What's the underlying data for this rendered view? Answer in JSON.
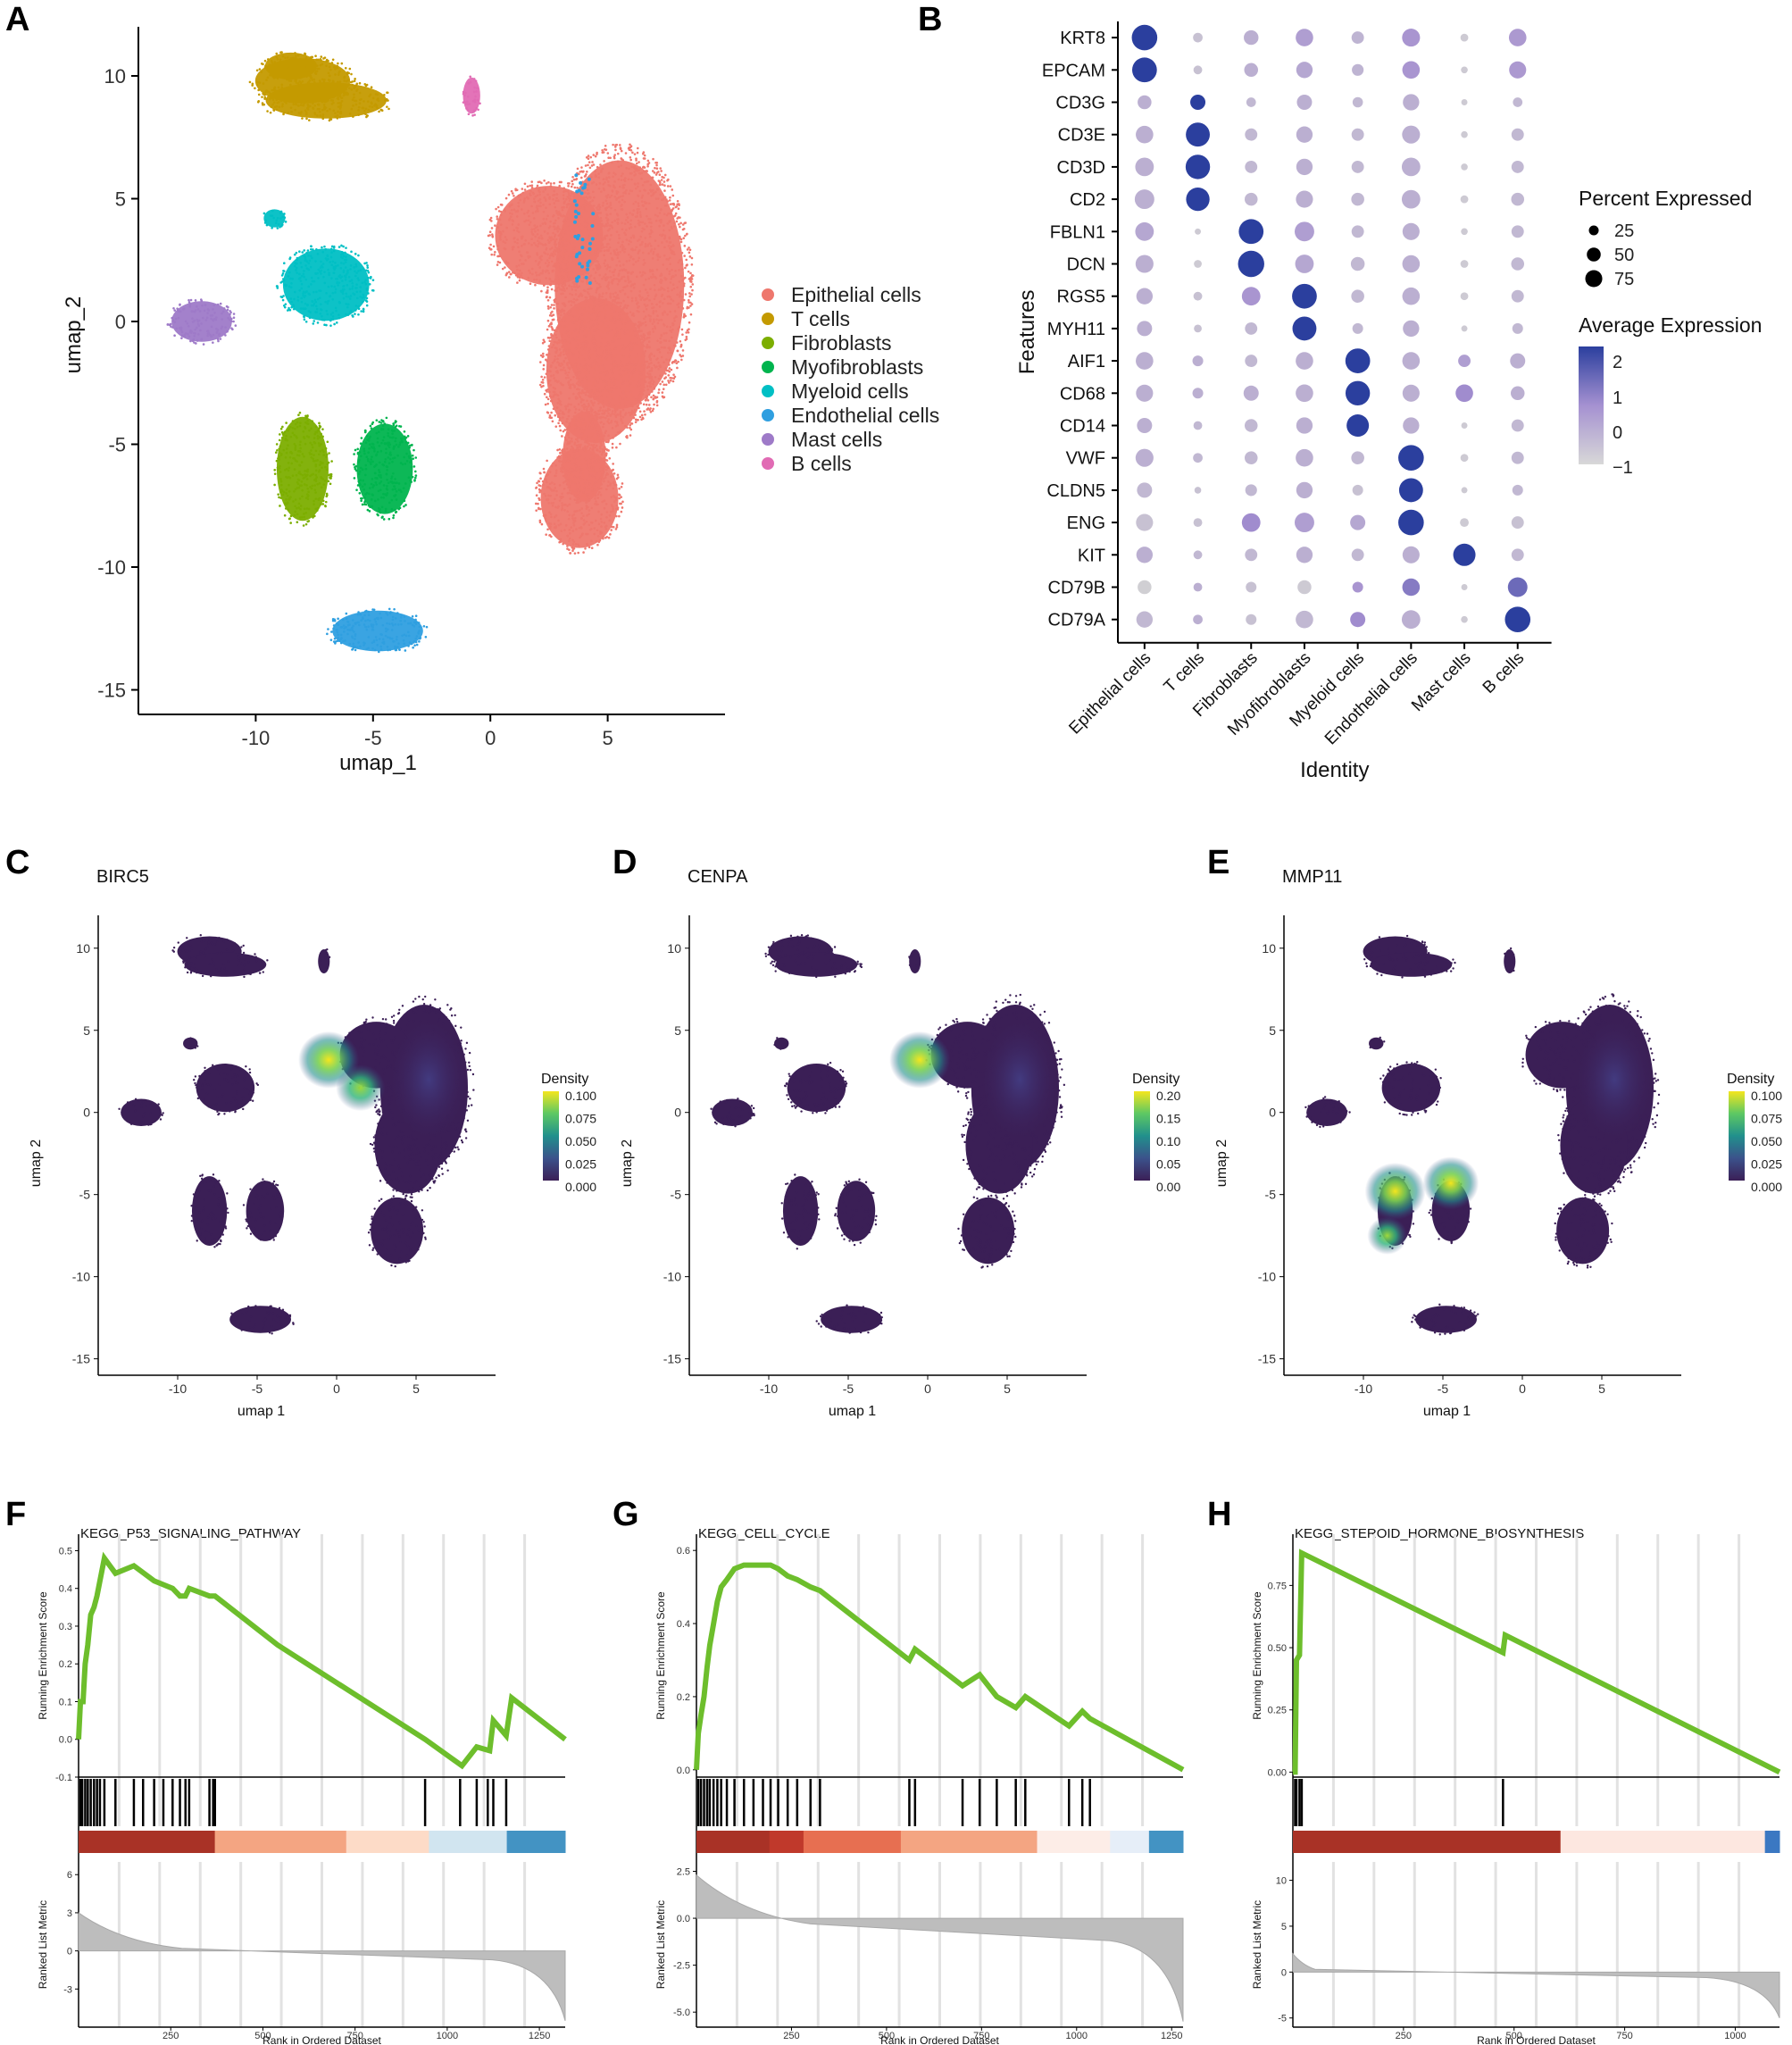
{
  "panels": {
    "A": "A",
    "B": "B",
    "C": "C",
    "D": "D",
    "E": "E",
    "F": "F",
    "G": "G",
    "H": "H"
  },
  "chart_data": [
    {
      "id": "A",
      "type": "scatter",
      "title": "",
      "xlabel": "umap_1",
      "ylabel": "umap_2",
      "xlim": [
        -15,
        10
      ],
      "ylim": [
        -16,
        12
      ],
      "xticks": [
        -10,
        -5,
        0,
        5
      ],
      "yticks": [
        10,
        5,
        0,
        -5,
        -10,
        -15
      ],
      "legend": [
        {
          "label": "Epithelial cells",
          "color": "#EE776D"
        },
        {
          "label": "T cells",
          "color": "#C49A00"
        },
        {
          "label": "Fibroblasts",
          "color": "#7CAE00"
        },
        {
          "label": "Myofibroblasts",
          "color": "#00B44E"
        },
        {
          "label": "Myeloid cells",
          "color": "#00BFC4"
        },
        {
          "label": "Endothelial cells",
          "color": "#2F9FE0"
        },
        {
          "label": "Mast cells",
          "color": "#9E7AC8"
        },
        {
          "label": "B cells",
          "color": "#E16BB4"
        }
      ],
      "clusters": [
        {
          "name": "Epithelial cells",
          "x": [
            0.0,
            9.0
          ],
          "y": [
            -10.0,
            7.5
          ]
        },
        {
          "name": "T cells",
          "x": [
            -11.0,
            -4.5
          ],
          "y": [
            7.5,
            11.0
          ]
        },
        {
          "name": "Fibroblasts",
          "x": [
            -9.5,
            -6.5
          ],
          "y": [
            -8.5,
            -4.0
          ]
        },
        {
          "name": "Myofibroblasts",
          "x": [
            -6.0,
            -3.0
          ],
          "y": [
            -8.0,
            -4.0
          ]
        },
        {
          "name": "Myeloid cells",
          "x": [
            -10.0,
            -5.0
          ],
          "y": [
            0.0,
            4.5
          ]
        },
        {
          "name": "Endothelial cells",
          "x": [
            -7.0,
            -2.5
          ],
          "y": [
            -14.0,
            -11.5
          ]
        },
        {
          "name": "Mast cells",
          "x": [
            -14.0,
            -10.5
          ],
          "y": [
            -1.0,
            1.0
          ]
        },
        {
          "name": "B cells",
          "x": [
            -1.5,
            0.0
          ],
          "y": [
            8.5,
            10.0
          ]
        }
      ]
    },
    {
      "id": "B",
      "type": "dotplot",
      "xlabel": "Identity",
      "ylabel": "Features",
      "features": [
        "KRT8",
        "EPCAM",
        "CD3G",
        "CD3E",
        "CD3D",
        "CD2",
        "FBLN1",
        "DCN",
        "RGS5",
        "MYH11",
        "AIF1",
        "CD68",
        "CD14",
        "VWF",
        "CLDN5",
        "ENG",
        "KIT",
        "CD79B",
        "CD79A"
      ],
      "identities": [
        "Epithelial cells",
        "T cells",
        "Fibroblasts",
        "Myofibroblasts",
        "Myeloid cells",
        "Endothelial cells",
        "Mast cells",
        "B cells"
      ],
      "percent_expressed": [
        [
          85,
          12,
          28,
          40,
          20,
          42,
          8,
          40
        ],
        [
          80,
          10,
          25,
          35,
          18,
          40,
          6,
          38
        ],
        [
          25,
          30,
          12,
          30,
          14,
          35,
          5,
          12
        ],
        [
          40,
          75,
          20,
          35,
          20,
          42,
          6,
          20
        ],
        [
          45,
          78,
          20,
          35,
          20,
          45,
          6,
          20
        ],
        [
          50,
          72,
          22,
          38,
          22,
          45,
          8,
          22
        ],
        [
          45,
          5,
          80,
          50,
          20,
          38,
          6,
          20
        ],
        [
          42,
          8,
          90,
          45,
          25,
          40,
          8,
          22
        ],
        [
          35,
          10,
          45,
          80,
          22,
          40,
          8,
          20
        ],
        [
          30,
          8,
          20,
          75,
          15,
          35,
          5,
          15
        ],
        [
          40,
          15,
          20,
          40,
          80,
          40,
          20,
          30
        ],
        [
          38,
          15,
          30,
          40,
          78,
          38,
          40,
          25
        ],
        [
          30,
          10,
          22,
          35,
          65,
          35,
          5,
          20
        ],
        [
          42,
          12,
          22,
          40,
          22,
          85,
          8,
          20
        ],
        [
          30,
          6,
          18,
          35,
          15,
          75,
          5,
          15
        ],
        [
          38,
          10,
          45,
          50,
          30,
          85,
          10,
          20
        ],
        [
          35,
          10,
          20,
          35,
          20,
          38,
          65,
          20
        ],
        [
          25,
          10,
          15,
          25,
          15,
          40,
          5,
          50
        ],
        [
          35,
          12,
          15,
          40,
          30,
          45,
          6,
          85
        ]
      ],
      "avg_expression": [
        [
          2.4,
          -0.6,
          -0.2,
          0.2,
          -0.3,
          0.4,
          -0.8,
          0.3
        ],
        [
          2.4,
          -0.6,
          -0.2,
          0.0,
          -0.3,
          0.4,
          -0.8,
          0.3
        ],
        [
          -0.2,
          2.4,
          -0.4,
          -0.2,
          -0.4,
          -0.2,
          -0.8,
          -0.4
        ],
        [
          -0.2,
          2.4,
          -0.4,
          -0.2,
          -0.4,
          -0.2,
          -0.8,
          -0.4
        ],
        [
          -0.2,
          2.4,
          -0.4,
          -0.2,
          -0.4,
          -0.2,
          -0.8,
          -0.4
        ],
        [
          -0.2,
          2.4,
          -0.4,
          -0.2,
          -0.4,
          -0.2,
          -0.8,
          -0.4
        ],
        [
          0.0,
          -0.8,
          2.4,
          0.2,
          -0.4,
          -0.2,
          -0.8,
          -0.4
        ],
        [
          -0.2,
          -0.8,
          2.4,
          0.0,
          -0.4,
          -0.2,
          -0.8,
          -0.4
        ],
        [
          -0.2,
          -0.6,
          0.4,
          2.4,
          -0.4,
          -0.2,
          -0.8,
          -0.4
        ],
        [
          -0.2,
          -0.6,
          -0.4,
          2.4,
          -0.4,
          -0.2,
          -0.8,
          -0.4
        ],
        [
          -0.2,
          -0.2,
          -0.4,
          -0.2,
          2.4,
          -0.2,
          0.2,
          -0.2
        ],
        [
          -0.2,
          -0.2,
          -0.2,
          -0.2,
          2.4,
          -0.2,
          0.6,
          -0.2
        ],
        [
          -0.2,
          -0.4,
          -0.4,
          -0.2,
          2.4,
          -0.2,
          -0.8,
          -0.4
        ],
        [
          -0.2,
          -0.4,
          -0.4,
          -0.2,
          -0.4,
          2.4,
          -0.8,
          -0.4
        ],
        [
          -0.4,
          -0.6,
          -0.4,
          -0.2,
          -0.6,
          2.4,
          -0.8,
          -0.4
        ],
        [
          -0.6,
          -0.6,
          0.6,
          0.2,
          0.0,
          2.4,
          -0.8,
          -0.6
        ],
        [
          -0.2,
          -0.4,
          -0.4,
          -0.2,
          -0.4,
          -0.2,
          2.4,
          -0.4
        ],
        [
          -0.9,
          -0.2,
          -0.6,
          -0.8,
          0.4,
          1.0,
          -0.8,
          1.4
        ],
        [
          -0.4,
          -0.2,
          -0.6,
          -0.4,
          0.6,
          -0.2,
          -0.8,
          2.4
        ]
      ],
      "size_legend_title": "Percent Expressed",
      "size_legend": [
        25,
        50,
        75
      ],
      "color_legend_title": "Average Expression",
      "color_legend_ticks": [
        "2",
        "1",
        "0",
        "−1"
      ],
      "color_range": [
        -1,
        2.4
      ],
      "colors": {
        "low": "#D3D3D3",
        "mid": "#A58FD0",
        "high": "#2E3F9E"
      }
    },
    {
      "id": "C",
      "type": "density",
      "title": "BIRC5",
      "xlabel": "umap 1",
      "ylabel": "umap 2",
      "legend_title": "Density",
      "legend_ticks": [
        "0.100",
        "0.075",
        "0.050",
        "0.025",
        "0.000"
      ],
      "hotspots": [
        {
          "x": -0.5,
          "y": 3.2,
          "level": 1.0
        },
        {
          "x": 1.5,
          "y": 1.5,
          "level": 0.75
        }
      ]
    },
    {
      "id": "D",
      "type": "density",
      "title": "CENPA",
      "xlabel": "umap 1",
      "ylabel": "umap 2",
      "legend_title": "Density",
      "legend_ticks": [
        "0.20",
        "0.15",
        "0.10",
        "0.05",
        "0.00"
      ],
      "hotspots": [
        {
          "x": -0.5,
          "y": 3.2,
          "level": 1.0
        }
      ]
    },
    {
      "id": "E",
      "type": "density",
      "title": "MMP11",
      "xlabel": "umap 1",
      "ylabel": "umap 2",
      "legend_title": "Density",
      "legend_ticks": [
        "0.100",
        "0.075",
        "0.050",
        "0.025",
        "0.000"
      ],
      "hotspots": [
        {
          "x": -8.0,
          "y": -4.8,
          "level": 1.0
        },
        {
          "x": -4.5,
          "y": -4.3,
          "level": 0.9
        },
        {
          "x": -8.5,
          "y": -7.5,
          "level": 0.55
        }
      ]
    },
    {
      "id": "F",
      "type": "line",
      "title": "KEGG_P53_SIGNALING_PATHWAY",
      "ylabel_top": "Running Enrichment Score",
      "ylabel_bottom": "Ranked List Metric",
      "xlabel": "Rank in Ordered Dataset",
      "x_max": 1320,
      "xticks": [
        250,
        500,
        750,
        1000,
        1250
      ],
      "y_range": [
        -0.1,
        0.52
      ],
      "yticks": [
        0.5,
        0.4,
        0.3,
        0.2,
        0.1,
        0.0,
        -0.1
      ],
      "ytick_labels": [
        "0.5",
        "0.4",
        "0.3",
        "0.2",
        "0.1",
        "0.0",
        "-0.1"
      ],
      "hits": [
        5,
        10,
        18,
        25,
        33,
        42,
        50,
        58,
        70,
        100,
        150,
        175,
        205,
        230,
        255,
        275,
        290,
        300,
        355,
        365,
        370,
        940,
        1035,
        1080,
        1110,
        1125,
        1160
      ],
      "es_curve": [
        [
          0,
          0.0
        ],
        [
          5,
          0.1
        ],
        [
          12,
          0.1
        ],
        [
          18,
          0.2
        ],
        [
          25,
          0.25
        ],
        [
          33,
          0.33
        ],
        [
          42,
          0.35
        ],
        [
          50,
          0.38
        ],
        [
          58,
          0.42
        ],
        [
          70,
          0.48
        ],
        [
          100,
          0.44
        ],
        [
          150,
          0.46
        ],
        [
          205,
          0.42
        ],
        [
          230,
          0.41
        ],
        [
          255,
          0.4
        ],
        [
          275,
          0.38
        ],
        [
          290,
          0.38
        ],
        [
          300,
          0.4
        ],
        [
          355,
          0.38
        ],
        [
          370,
          0.38
        ],
        [
          540,
          0.25
        ],
        [
          940,
          0.0
        ],
        [
          1040,
          -0.07
        ],
        [
          1080,
          -0.02
        ],
        [
          1115,
          -0.03
        ],
        [
          1125,
          0.05
        ],
        [
          1160,
          0.01
        ],
        [
          1175,
          0.11
        ],
        [
          1320,
          0.0
        ]
      ],
      "rank_metric": {
        "max": 3.0,
        "min": -5.5,
        "knee": 280,
        "mid": 0.2,
        "yticks": [
          6,
          3,
          0,
          -3
        ],
        "ylim": [
          -6,
          7
        ]
      },
      "colorbar": [
        {
          "to": 0.28,
          "color": "#A93226"
        },
        {
          "to": 0.55,
          "color": "#F4A582"
        },
        {
          "to": 0.72,
          "color": "#FDDBC7"
        },
        {
          "to": 0.88,
          "color": "#D1E5F0"
        },
        {
          "to": 1.0,
          "color": "#4393C3"
        }
      ]
    },
    {
      "id": "G",
      "type": "line",
      "title": "KEGG_CELL_CYCLE",
      "ylabel_top": "Running Enrichment Score",
      "ylabel_bottom": "Ranked List Metric",
      "xlabel": "Rank in Ordered Dataset",
      "x_max": 1280,
      "xticks": [
        250,
        500,
        750,
        1000,
        1250
      ],
      "y_range": [
        -0.02,
        0.62
      ],
      "yticks": [
        0.6,
        0.4,
        0.2,
        0.0
      ],
      "ytick_labels": [
        "0.6",
        "0.4",
        "0.2",
        "0.0"
      ],
      "hits": [
        5,
        12,
        20,
        28,
        35,
        45,
        55,
        65,
        80,
        100,
        125,
        150,
        175,
        195,
        215,
        240,
        265,
        300,
        325,
        560,
        575,
        700,
        745,
        790,
        840,
        865,
        980,
        1015,
        1035
      ],
      "es_curve": [
        [
          0,
          0.0
        ],
        [
          5,
          0.1
        ],
        [
          12,
          0.15
        ],
        [
          20,
          0.2
        ],
        [
          28,
          0.28
        ],
        [
          35,
          0.34
        ],
        [
          45,
          0.4
        ],
        [
          55,
          0.46
        ],
        [
          65,
          0.5
        ],
        [
          80,
          0.52
        ],
        [
          100,
          0.55
        ],
        [
          125,
          0.56
        ],
        [
          150,
          0.56
        ],
        [
          175,
          0.56
        ],
        [
          195,
          0.56
        ],
        [
          215,
          0.55
        ],
        [
          240,
          0.53
        ],
        [
          265,
          0.52
        ],
        [
          300,
          0.5
        ],
        [
          325,
          0.49
        ],
        [
          560,
          0.3
        ],
        [
          575,
          0.33
        ],
        [
          700,
          0.23
        ],
        [
          745,
          0.26
        ],
        [
          790,
          0.2
        ],
        [
          840,
          0.17
        ],
        [
          865,
          0.2
        ],
        [
          980,
          0.12
        ],
        [
          1015,
          0.16
        ],
        [
          1035,
          0.14
        ],
        [
          1280,
          0.0
        ]
      ],
      "rank_metric": {
        "max": 2.3,
        "min": -5.5,
        "knee": 300,
        "mid": -0.3,
        "yticks": [
          2.5,
          0.0,
          -2.5,
          -5.0
        ],
        "ytick_labels": [
          "2.5",
          "0.0",
          "-2.5",
          "-5.0"
        ],
        "ylim": [
          -5.8,
          3.0
        ]
      },
      "colorbar": [
        {
          "to": 0.15,
          "color": "#A93226"
        },
        {
          "to": 0.22,
          "color": "#C0392B"
        },
        {
          "to": 0.42,
          "color": "#E76F51"
        },
        {
          "to": 0.7,
          "color": "#F4A582"
        },
        {
          "to": 0.85,
          "color": "#FDEDE7"
        },
        {
          "to": 0.93,
          "color": "#E6EEF8"
        },
        {
          "to": 1.0,
          "color": "#4393C3"
        }
      ]
    },
    {
      "id": "H",
      "type": "line",
      "title": "KEGG_STEROID_HORMONE_BIOSYNTHESIS",
      "ylabel_top": "Running Enrichment Score",
      "ylabel_bottom": "Ranked List Metric",
      "xlabel": "Rank in Ordered Dataset",
      "x_max": 1100,
      "xticks": [
        250,
        500,
        750,
        1000
      ],
      "y_range": [
        -0.02,
        0.92
      ],
      "yticks": [
        0.75,
        0.5,
        0.25,
        0.0
      ],
      "ytick_labels": [
        "0.75",
        "0.50",
        "0.25",
        "0.00"
      ],
      "hits": [
        5,
        8,
        15,
        20,
        475
      ],
      "es_curve": [
        [
          0,
          0.0
        ],
        [
          5,
          0.0
        ],
        [
          8,
          0.45
        ],
        [
          15,
          0.47
        ],
        [
          20,
          0.88
        ],
        [
          475,
          0.48
        ],
        [
          480,
          0.55
        ],
        [
          1100,
          0.0
        ]
      ],
      "rank_metric": {
        "max": 2.0,
        "min": -5.0,
        "knee": 50,
        "mid": 0.3,
        "yticks": [
          10,
          5,
          0,
          -5
        ],
        "ylim": [
          -6,
          12
        ]
      },
      "colorbar": [
        {
          "to": 0.55,
          "color": "#A93226"
        },
        {
          "to": 0.97,
          "color": "#FDE7E0"
        },
        {
          "to": 1.0,
          "color": "#3B78C2"
        }
      ]
    }
  ]
}
